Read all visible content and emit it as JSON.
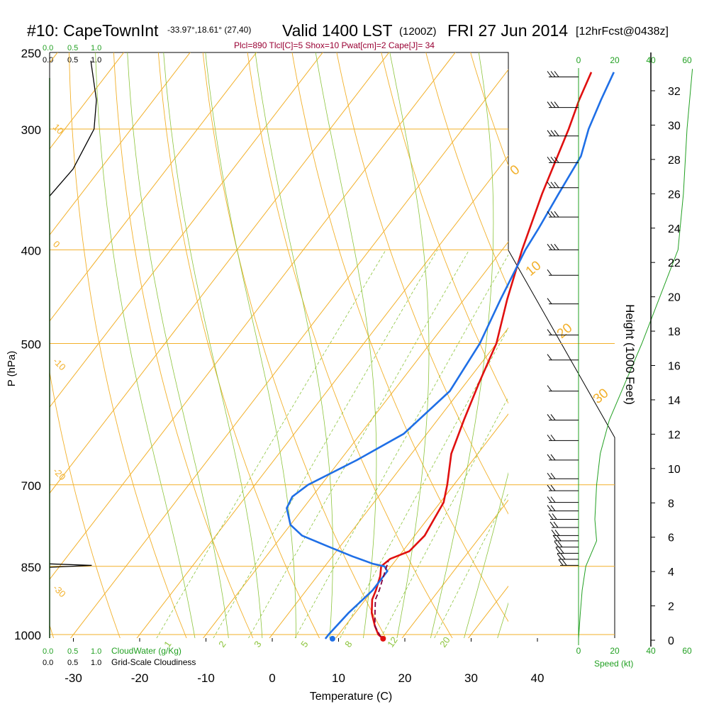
{
  "header": {
    "station": "#10: CapeTownInt",
    "coords": "-33.97°,18.61° (27,40)",
    "valid": "Valid 1400 LST",
    "zulu": "(1200Z)",
    "date": "FRI 27 Jun 2014",
    "forecast": "[12hrFcst@0438z]",
    "indices": "Plcl=890 Tlcl[C]=5 Shox=10 Pwat[cm]=2 Cape[J]= 34"
  },
  "labels": {
    "cloudwater_scale": [
      "0.0",
      "0.5",
      "1.0"
    ],
    "cloudiness_scale": [
      "0.0",
      "0.5",
      "1.0"
    ],
    "cloudwater_label": "CloudWater (g/Kg)",
    "cloudiness_label": "Grid-Scale Cloudiness",
    "speed_ticks": [
      "0",
      "20",
      "40",
      "60"
    ],
    "speed_label": "Speed (kt)"
  },
  "colors": {
    "isotherm": "#f2b02a",
    "dry_adiabat": "#f2b02a",
    "moist_adiabat": "#8cc43c",
    "mixing_ratio": "#8cc43c",
    "temperature": "#e01010",
    "dewpoint": "#1f6fe6",
    "parcel": "#800040",
    "indices_text": "#990033",
    "speed": "#22a022",
    "wind": "#000000"
  },
  "chart_data": {
    "type": "line",
    "title": "#10: CapeTownInt  Valid 1400 LST (1200Z) FRI 27 Jun 2014",
    "xlabel": "Temperature (C)",
    "ylabel": "P (hPa)",
    "y2label": "Height (1000 Feet)",
    "xlim": [
      -35,
      52
    ],
    "ylim": [
      1030,
      250
    ],
    "x_ticks": [
      -30,
      -20,
      -10,
      0,
      10,
      20,
      30,
      40
    ],
    "y_ticks": [
      1000,
      850,
      700,
      500,
      400,
      300,
      250
    ],
    "height_ticks": [
      0,
      2,
      4,
      6,
      8,
      10,
      12,
      14,
      16,
      18,
      20,
      22,
      24,
      26,
      28,
      30,
      32
    ],
    "isobars": [
      1000,
      850,
      700,
      500,
      400,
      300
    ],
    "mixing_ratio_labels": [
      "1",
      "2",
      "3",
      "5",
      "8",
      "12",
      "20"
    ],
    "dry_adiabat_labels": [
      "10",
      "0",
      "-10",
      "-20",
      "-30"
    ],
    "moist_adiabat_labels": [
      "0",
      "10",
      "20",
      "30"
    ],
    "series": [
      {
        "key": "temperature",
        "points": [
          [
            1010,
            17.2
          ],
          [
            1000,
            16.0
          ],
          [
            980,
            14.5
          ],
          [
            950,
            12.5
          ],
          [
            920,
            11.0
          ],
          [
            900,
            10.5
          ],
          [
            870,
            9.5
          ],
          [
            850,
            8.5
          ],
          [
            835,
            9.0
          ],
          [
            820,
            11.0
          ],
          [
            790,
            11.5
          ],
          [
            760,
            11.0
          ],
          [
            730,
            10.5
          ],
          [
            700,
            9.0
          ],
          [
            650,
            6.0
          ],
          [
            600,
            4.0
          ],
          [
            550,
            2.0
          ],
          [
            500,
            0.0
          ],
          [
            450,
            -3.5
          ],
          [
            400,
            -7.0
          ],
          [
            350,
            -10.5
          ],
          [
            300,
            -14.0
          ],
          [
            280,
            -15.8
          ],
          [
            262,
            -17.2
          ]
        ]
      },
      {
        "key": "dewpoint",
        "points": [
          [
            1010,
            8.5
          ],
          [
            1000,
            8.5
          ],
          [
            950,
            9.0
          ],
          [
            900,
            10.0
          ],
          [
            860,
            10.0
          ],
          [
            850,
            9.0
          ],
          [
            845,
            7.0
          ],
          [
            830,
            3.0
          ],
          [
            810,
            -2.0
          ],
          [
            790,
            -7.0
          ],
          [
            770,
            -10.0
          ],
          [
            740,
            -12.5
          ],
          [
            720,
            -13.0
          ],
          [
            700,
            -12.0
          ],
          [
            660,
            -7.5
          ],
          [
            620,
            -3.5
          ],
          [
            560,
            -1.5
          ],
          [
            500,
            -2.5
          ],
          [
            450,
            -4.5
          ],
          [
            400,
            -6.5
          ],
          [
            380,
            -7.0
          ],
          [
            350,
            -8.0
          ],
          [
            320,
            -9.0
          ],
          [
            300,
            -11.0
          ],
          [
            280,
            -12.5
          ],
          [
            262,
            -13.8
          ]
        ]
      },
      {
        "key": "parcel",
        "points": [
          [
            1005,
            16.6
          ],
          [
            980,
            14.5
          ],
          [
            950,
            13.0
          ],
          [
            920,
            11.5
          ],
          [
            900,
            11.0
          ],
          [
            870,
            10.0
          ],
          [
            840,
            9.0
          ]
        ]
      }
    ],
    "cloudiness_profile": [
      [
        255,
        0.88
      ],
      [
        280,
        1.0
      ],
      [
        300,
        0.95
      ],
      [
        330,
        0.5
      ],
      [
        352,
        0.0
      ]
    ],
    "cloud_water_profile": [
      [
        845,
        0.0
      ],
      [
        848,
        0.9
      ],
      [
        852,
        0.0
      ]
    ],
    "speed_profile": [
      [
        1010,
        0
      ],
      [
        950,
        1
      ],
      [
        900,
        2
      ],
      [
        850,
        4
      ],
      [
        800,
        10
      ],
      [
        760,
        9
      ],
      [
        700,
        10
      ],
      [
        650,
        12
      ],
      [
        600,
        17
      ],
      [
        500,
        35
      ],
      [
        400,
        55
      ],
      [
        350,
        58
      ],
      [
        300,
        60
      ],
      [
        260,
        63
      ]
    ],
    "wind_barb_levels": [
      265,
      285,
      305,
      325,
      345,
      370,
      400,
      425,
      455,
      490,
      520,
      560,
      600,
      630,
      660,
      690,
      710,
      730,
      745,
      760,
      775,
      790,
      800,
      812,
      824,
      836,
      848
    ],
    "surface_points": {
      "temperature": 17.2,
      "dewpoint": 8.5
    }
  }
}
